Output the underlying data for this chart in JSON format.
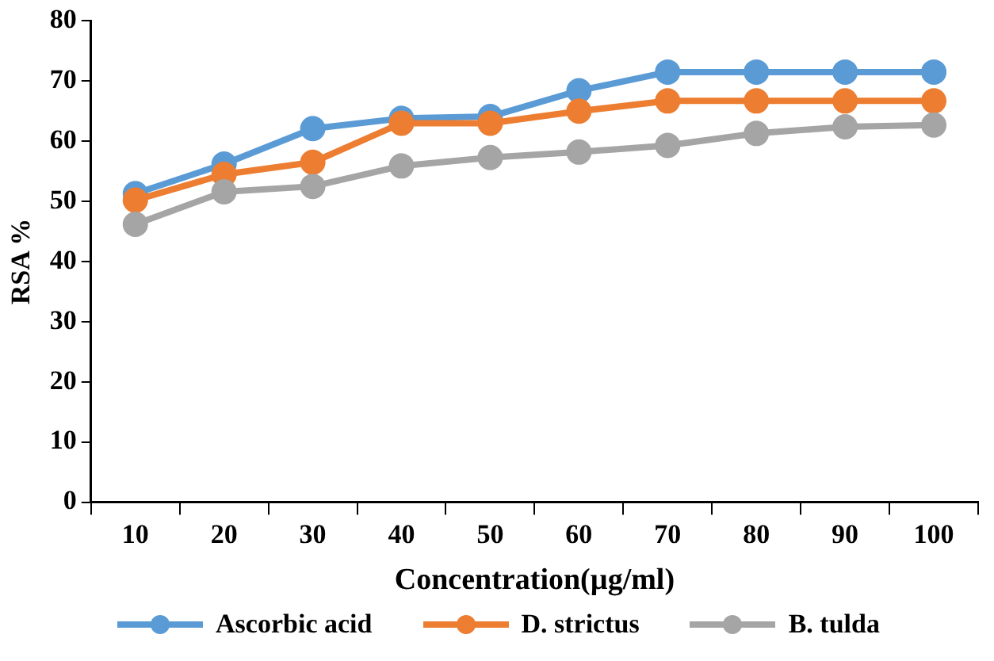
{
  "chart_data": {
    "type": "line",
    "xlabel": "Concentration(µg/ml)",
    "ylabel": "RSA %",
    "categories": [
      "10",
      "20",
      "30",
      "40",
      "50",
      "60",
      "70",
      "80",
      "90",
      "100"
    ],
    "series": [
      {
        "name": "Ascorbic acid",
        "color": "#5b9bd5",
        "values": [
          51.3,
          56.2,
          62.1,
          63.8,
          64.1,
          68.4,
          71.5,
          71.5,
          71.5,
          71.5
        ]
      },
      {
        "name": "D. strictus",
        "color": "#ed7d31",
        "values": [
          50.2,
          54.5,
          56.5,
          63,
          63,
          65,
          66.7,
          66.7,
          66.7,
          66.7
        ]
      },
      {
        "name": "B. tulda",
        "color": "#a5a5a5",
        "values": [
          46.2,
          51.6,
          52.5,
          55.9,
          57.3,
          58.2,
          59.3,
          61.3,
          62.4,
          62.7
        ]
      }
    ],
    "ylim": [
      0,
      80
    ],
    "yticks": [
      0,
      10,
      20,
      30,
      40,
      50,
      60,
      70,
      80
    ],
    "grid": false,
    "legend": "bottom",
    "marker": "circle",
    "line_style": "solid"
  }
}
